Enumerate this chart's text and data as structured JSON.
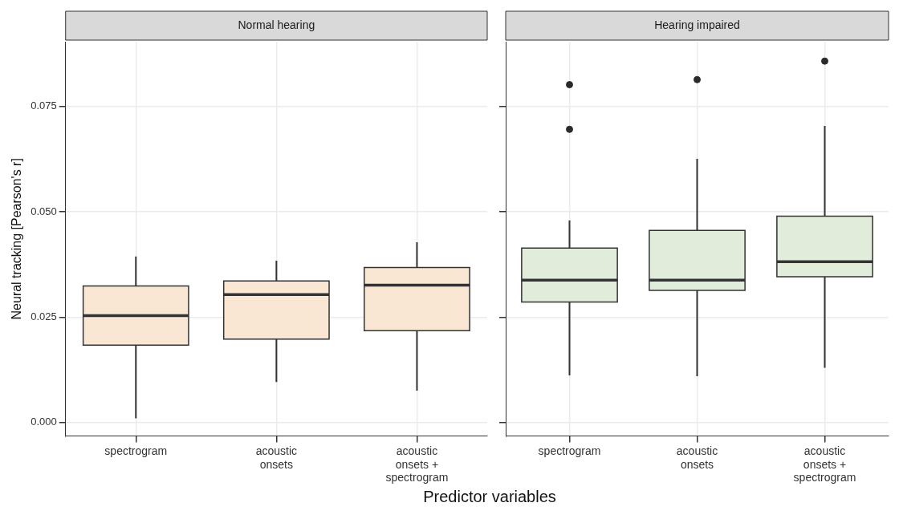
{
  "chart_data": [
    {
      "type": "box",
      "title": "Normal hearing",
      "ylabel": "Neural tracking [Pearson's r]",
      "xlabel": "Predictor variables",
      "categories": [
        "spectrogram",
        "acoustic onsets",
        "acoustic onsets + spectrogram"
      ],
      "color": "#f9e6d3",
      "ylim": [
        -0.0032,
        0.0904
      ],
      "yticks": [
        {
          "value": 0,
          "label": "0.000"
        },
        0.025,
        {
          "value": 0.05,
          "label": "0.050"
        },
        0.075
      ],
      "grid": true,
      "boxes": [
        {
          "low": 0.001,
          "q1": 0.0184,
          "median": 0.0254,
          "q3": 0.0324,
          "high": 0.0394
        },
        {
          "low": 0.0096,
          "q1": 0.0198,
          "median": 0.0304,
          "q3": 0.0336,
          "high": 0.0384
        },
        {
          "low": 0.0076,
          "q1": 0.0218,
          "median": 0.0326,
          "q3": 0.0368,
          "high": 0.0428
        }
      ]
    },
    {
      "type": "box",
      "title": "Hearing impaired",
      "categories": [
        "spectrogram",
        "acoustic onsets",
        "acoustic onsets + spectrogram"
      ],
      "color": "#e1edda",
      "ylim": [
        -0.0032,
        0.0904
      ],
      "yticks": [
        0,
        0.025,
        0.05,
        0.075
      ],
      "grid": true,
      "tick_labels": "x",
      "boxes": [
        {
          "low": 0.0112,
          "q1": 0.0286,
          "median": 0.0338,
          "q3": 0.0414,
          "high": 0.048,
          "outliers": [
            0.0802,
            0.0696
          ]
        },
        {
          "low": 0.011,
          "q1": 0.0314,
          "median": 0.0338,
          "q3": 0.0456,
          "high": 0.0626,
          "outliers": [
            0.0814
          ]
        },
        {
          "low": 0.013,
          "q1": 0.0346,
          "median": 0.0382,
          "q3": 0.049,
          "high": 0.0704,
          "outliers": [
            0.0858
          ]
        }
      ]
    }
  ]
}
